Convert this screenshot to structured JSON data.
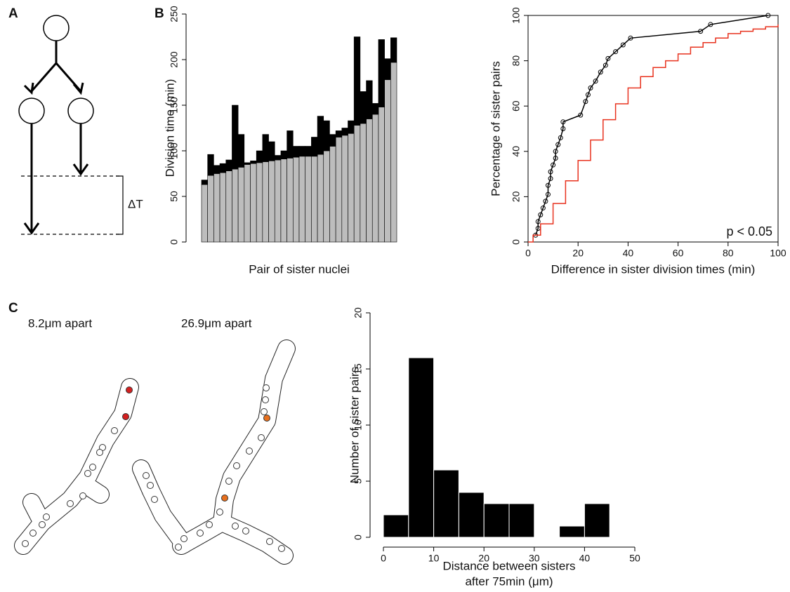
{
  "panel_labels": [
    "A",
    "B",
    "C"
  ],
  "diagram": {
    "delta_label": "ΔT"
  },
  "micrographs": [
    {
      "label": "8.2μm apart"
    },
    {
      "label": "26.9μm apart"
    }
  ],
  "chart_data": [
    {
      "type": "bar",
      "stacked": true,
      "y_label": "Division time (min)",
      "x_label": "Pair of sister nuclei",
      "categories": [
        null,
        null,
        null,
        null,
        null,
        null,
        null,
        null,
        null,
        null,
        null,
        null,
        null,
        null,
        null,
        null,
        null,
        null,
        null,
        null,
        null,
        null,
        null,
        null,
        null,
        null,
        null,
        null,
        null,
        null,
        null,
        null
      ],
      "series": [
        {
          "color": "#bdbdbd",
          "values": [
            63,
            73,
            75,
            76,
            78,
            80,
            82,
            85,
            86,
            87,
            88,
            89,
            90,
            91,
            92,
            93,
            94,
            94,
            94,
            96,
            100,
            105,
            115,
            117,
            119,
            128,
            130,
            135,
            140,
            148,
            178,
            197
          ]
        },
        {
          "color": "#000000",
          "values": [
            5,
            23,
            9,
            10,
            12,
            70,
            36,
            2,
            3,
            13,
            30,
            21,
            5,
            9,
            30,
            12,
            11,
            11,
            21,
            42,
            33,
            13,
            7,
            8,
            14,
            97,
            35,
            42,
            12,
            74,
            23,
            27
          ]
        }
      ],
      "ylim": [
        0,
        250
      ],
      "yticks": [
        0,
        50,
        100,
        150,
        200,
        250
      ]
    },
    {
      "type": "line",
      "box": true,
      "y_label": "Percentage of sister pairs",
      "x_label": "Difference in sister division times (min)",
      "annotation": "p < 0.05",
      "series": [
        {
          "color": "#000000",
          "marker": "circle",
          "x": [
            3,
            4,
            4,
            5,
            6,
            7,
            8,
            8,
            9,
            9,
            10,
            11,
            11,
            12,
            13,
            14,
            14,
            21,
            23,
            24,
            25,
            27,
            29,
            31,
            32,
            35,
            38,
            41,
            69,
            73,
            96
          ],
          "values": [
            3,
            6,
            9,
            12,
            15,
            18,
            21,
            25,
            28,
            31,
            34,
            37,
            40,
            43,
            46,
            50,
            53,
            56,
            62,
            65,
            68,
            71,
            75,
            78,
            81,
            84,
            87,
            90,
            93,
            96,
            100
          ]
        },
        {
          "color": "#e8321e",
          "drawstyle": "steps-post",
          "x": [
            0,
            2,
            5,
            10,
            15,
            20,
            25,
            30,
            35,
            40,
            45,
            50,
            55,
            60,
            65,
            70,
            75,
            80,
            85,
            90,
            95,
            100
          ],
          "values": [
            0,
            3,
            8,
            17,
            27,
            36,
            45,
            54,
            61,
            68,
            73,
            77,
            80,
            83,
            86,
            88,
            90,
            92,
            93,
            94,
            95,
            96
          ]
        }
      ],
      "xlim": [
        0,
        100
      ],
      "xticks": [
        0,
        20,
        40,
        60,
        80,
        100
      ],
      "ylim": [
        0,
        100
      ],
      "yticks": [
        0,
        20,
        40,
        60,
        80,
        100
      ]
    },
    {
      "type": "histogram",
      "y_label": "Number of sister pairs",
      "x_label": [
        "Distance between sisters",
        "after 75min (μm)"
      ],
      "color": "#000000",
      "bins": [
        0,
        5,
        10,
        15,
        20,
        25,
        30,
        35,
        40,
        45
      ],
      "counts": [
        2,
        16,
        6,
        4,
        3,
        3,
        0,
        1,
        3
      ],
      "xlim": [
        0,
        50
      ],
      "xticks": [
        0,
        10,
        20,
        30,
        40,
        50
      ],
      "ylim": [
        0,
        20
      ],
      "yticks": [
        0,
        5,
        10,
        15,
        20
      ]
    }
  ]
}
